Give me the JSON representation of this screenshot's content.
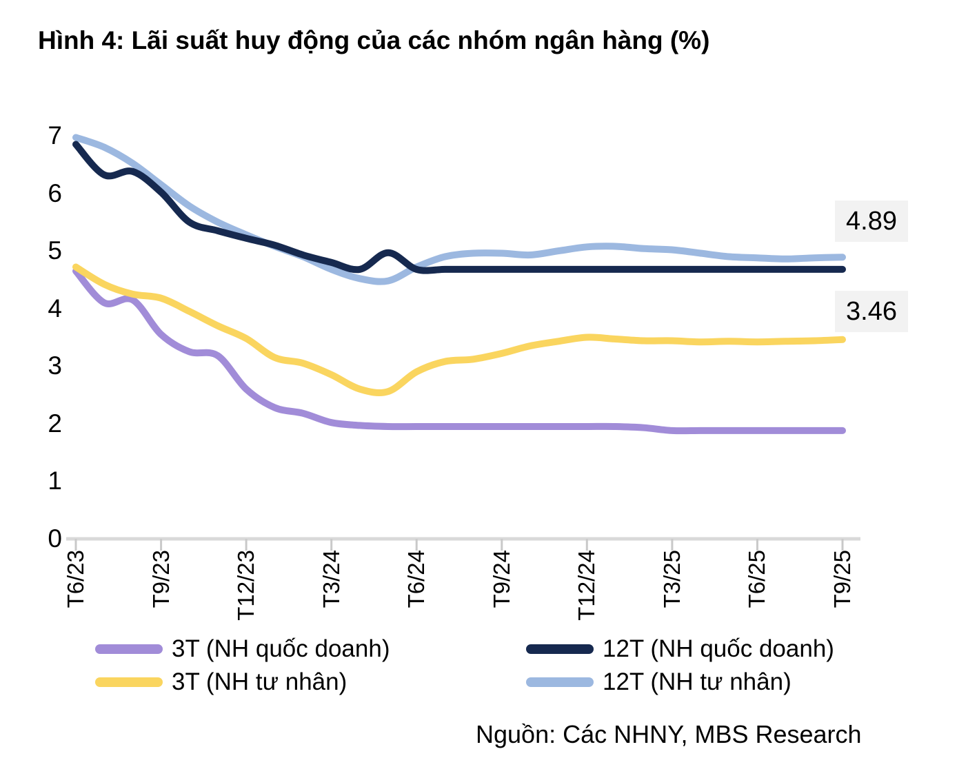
{
  "chart_data": {
    "type": "line",
    "title": "Hình 4: Lãi suất huy động của các nhóm ngân hàng (%)",
    "source": "Nguồn: Các NHNY, MBS Research",
    "xlabel": "",
    "ylabel": "",
    "ylim": [
      0,
      7
    ],
    "grid": "off",
    "legend_position": "bottom",
    "y_ticks": [
      7,
      6,
      5,
      4,
      3,
      2,
      1,
      0
    ],
    "x_tick_labels": [
      "T6/23",
      "T9/23",
      "T12/23",
      "T3/24",
      "T6/24",
      "T9/24",
      "T12/24",
      "T3/25",
      "T6/25",
      "T9/25"
    ],
    "x": [
      "T6/23",
      "T7/23",
      "T8/23",
      "T9/23",
      "T10/23",
      "T11/23",
      "T12/23",
      "T1/24",
      "T2/24",
      "T3/24",
      "T4/24",
      "T5/24",
      "T6/24",
      "T7/24",
      "T8/24",
      "T9/24",
      "T10/24",
      "T11/24",
      "T12/24",
      "T1/25",
      "T2/25",
      "T3/25",
      "T4/25",
      "T5/25",
      "T6/25",
      "T7/25",
      "T8/25",
      "T9/25"
    ],
    "series": [
      {
        "name": "3T (NH quốc doanh)",
        "color": "#A18CD8",
        "values": [
          4.65,
          4.1,
          4.15,
          3.55,
          3.25,
          3.18,
          2.6,
          2.28,
          2.18,
          2.02,
          1.97,
          1.95,
          1.95,
          1.95,
          1.95,
          1.95,
          1.95,
          1.95,
          1.95,
          1.95,
          1.93,
          1.88,
          1.88,
          1.88,
          1.88,
          1.88,
          1.88,
          1.88
        ]
      },
      {
        "name": "3T (NH tư nhân)",
        "color": "#FAD55F",
        "values": [
          4.72,
          4.42,
          4.25,
          4.18,
          3.95,
          3.7,
          3.48,
          3.15,
          3.05,
          2.85,
          2.6,
          2.56,
          2.9,
          3.08,
          3.12,
          3.22,
          3.35,
          3.43,
          3.5,
          3.47,
          3.44,
          3.44,
          3.42,
          3.43,
          3.42,
          3.43,
          3.44,
          3.46
        ]
      },
      {
        "name": "12T (NH tư nhân)",
        "color": "#9CB8E0",
        "values": [
          6.97,
          6.8,
          6.52,
          6.15,
          5.78,
          5.5,
          5.28,
          5.08,
          4.9,
          4.68,
          4.52,
          4.48,
          4.72,
          4.9,
          4.96,
          4.96,
          4.93,
          5.0,
          5.07,
          5.08,
          5.04,
          5.02,
          4.96,
          4.9,
          4.88,
          4.86,
          4.88,
          4.89
        ]
      },
      {
        "name": "12T (NH quốc doanh)",
        "color": "#16294F",
        "values": [
          6.85,
          6.32,
          6.38,
          6.02,
          5.5,
          5.35,
          5.22,
          5.1,
          4.93,
          4.8,
          4.68,
          4.97,
          4.68,
          4.68,
          4.68,
          4.68,
          4.68,
          4.68,
          4.68,
          4.68,
          4.68,
          4.68,
          4.68,
          4.68,
          4.68,
          4.68,
          4.68,
          4.68
        ]
      }
    ],
    "end_labels": [
      {
        "text": "4.89",
        "series": "12T (NH tư nhân)"
      },
      {
        "text": "3.46",
        "series": "3T (NH tư nhân)"
      }
    ],
    "legend_order": [
      0,
      3,
      1,
      2
    ]
  }
}
